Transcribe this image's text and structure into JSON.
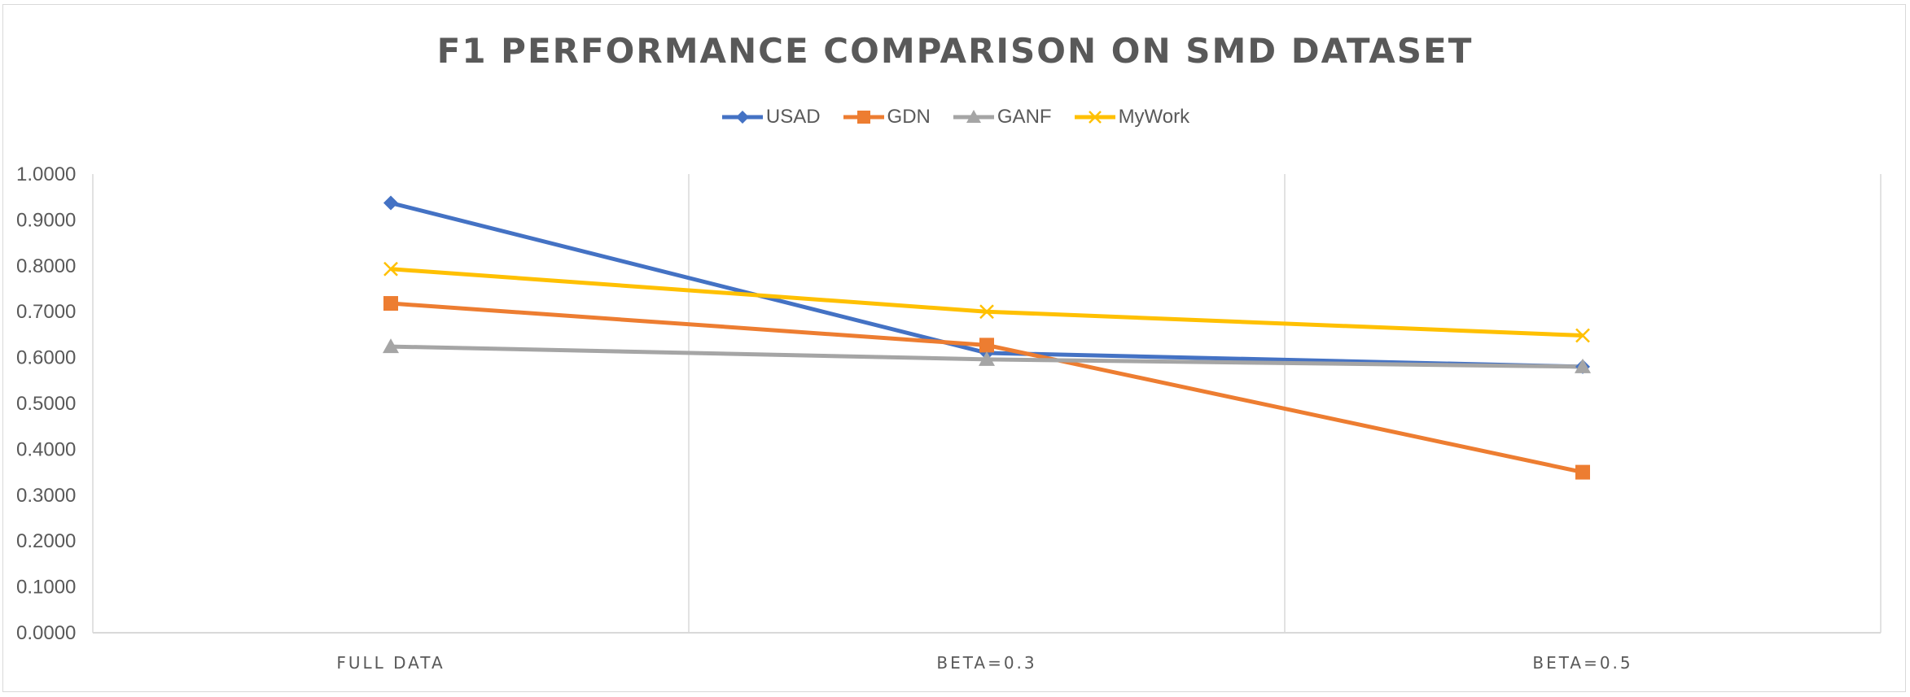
{
  "chart_data": {
    "type": "line",
    "title": "F1 PERFORMANCE COMPARISON ON SMD DATASET",
    "categories": [
      "FULL DATA",
      "BETA=0.3",
      "BETA=0.5"
    ],
    "ylim": [
      0,
      1.0
    ],
    "yticks": [
      "0.0000",
      "0.1000",
      "0.2000",
      "0.3000",
      "0.4000",
      "0.5000",
      "0.6000",
      "0.7000",
      "0.8000",
      "0.9000",
      "1.0000"
    ],
    "grid": "vertical-category",
    "legend": "top-center",
    "series": [
      {
        "name": "USAD",
        "color": "#4472C4",
        "marker": "diamond",
        "values": [
          0.937,
          0.61,
          0.58
        ]
      },
      {
        "name": "GDN",
        "color": "#ED7D31",
        "marker": "square",
        "values": [
          0.718,
          0.627,
          0.35
        ]
      },
      {
        "name": "GANF",
        "color": "#A5A5A5",
        "marker": "triangle",
        "values": [
          0.624,
          0.596,
          0.58
        ]
      },
      {
        "name": "MyWork",
        "color": "#FFC000",
        "marker": "x",
        "values": [
          0.793,
          0.7,
          0.648
        ]
      }
    ]
  }
}
